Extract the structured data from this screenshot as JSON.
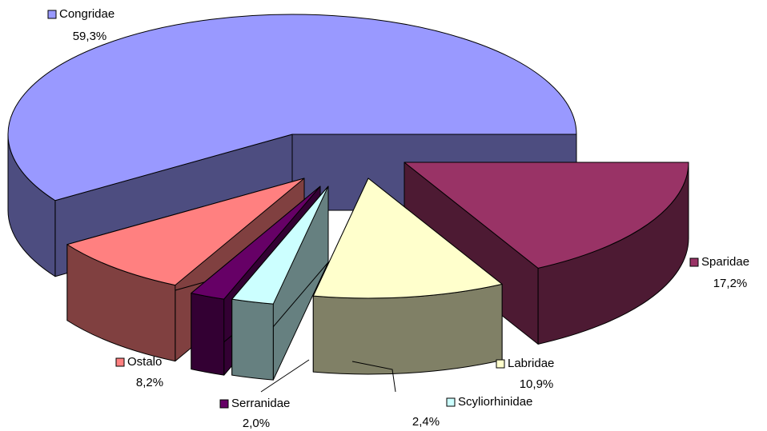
{
  "chart_data": {
    "type": "pie3d",
    "categories": [
      "Sparidae",
      "Labridae",
      "Scyliorhinidae",
      "Serranidae",
      "Ostalo",
      "Congridae"
    ],
    "values": [
      17.2,
      10.9,
      2.4,
      2.0,
      8.2,
      59.3
    ],
    "value_labels": [
      "17,2%",
      "10,9%",
      "2,4%",
      "2,0%",
      "8,2%",
      "59,3%"
    ],
    "colors": [
      "#993366",
      "#ffffcc",
      "#ccffff",
      "#660066",
      "#ff8080",
      "#9999ff"
    ],
    "side_colors": [
      "#4d1a33",
      "#808066",
      "#668080",
      "#330033",
      "#804040",
      "#4d4d80"
    ]
  }
}
